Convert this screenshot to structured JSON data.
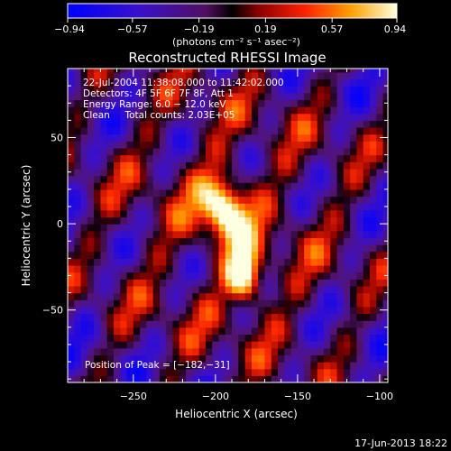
{
  "chart_data": {
    "type": "heatmap",
    "title": "Reconstructed RHESSI Image",
    "xlabel": "Heliocentric X (arcsec)",
    "ylabel": "Heliocentric Y (arcsec)",
    "xlim": [
      -290,
      -95
    ],
    "ylim": [
      -92,
      90
    ],
    "x_ticks": [
      -250,
      -200,
      -150,
      -100
    ],
    "x_tick_labels": [
      "−250",
      "−200",
      "−150",
      "−100"
    ],
    "y_ticks": [
      50,
      0,
      -50
    ],
    "y_tick_labels": [
      "50",
      "0",
      "−50"
    ],
    "grid": false,
    "colorbar": {
      "position": "top",
      "range": [
        -0.94,
        0.94
      ],
      "ticks": [
        -0.94,
        -0.57,
        -0.19,
        0.19,
        0.57,
        0.94
      ],
      "tick_labels": [
        "−0.94",
        "−0.57",
        "−0.19",
        "0.19",
        "0.57",
        "0.94"
      ],
      "unit_label": "(photons cm⁻² s⁻¹ asec⁻²)"
    },
    "annotations": [
      "22-Jul-2004 11:38:08.000 to 11:42:02.000",
      "Detectors: 4F 5F 6F 7F 8F, Att 1",
      "Energy Range: 6.0 − 12.0 keV",
      "Clean     Total counts: 2.03E+05"
    ],
    "peak_text": "Position of Peak = [−182,−31]",
    "peak": [
      -182,
      -31
    ],
    "footer_date": "17-Jun-2013 18:22"
  }
}
